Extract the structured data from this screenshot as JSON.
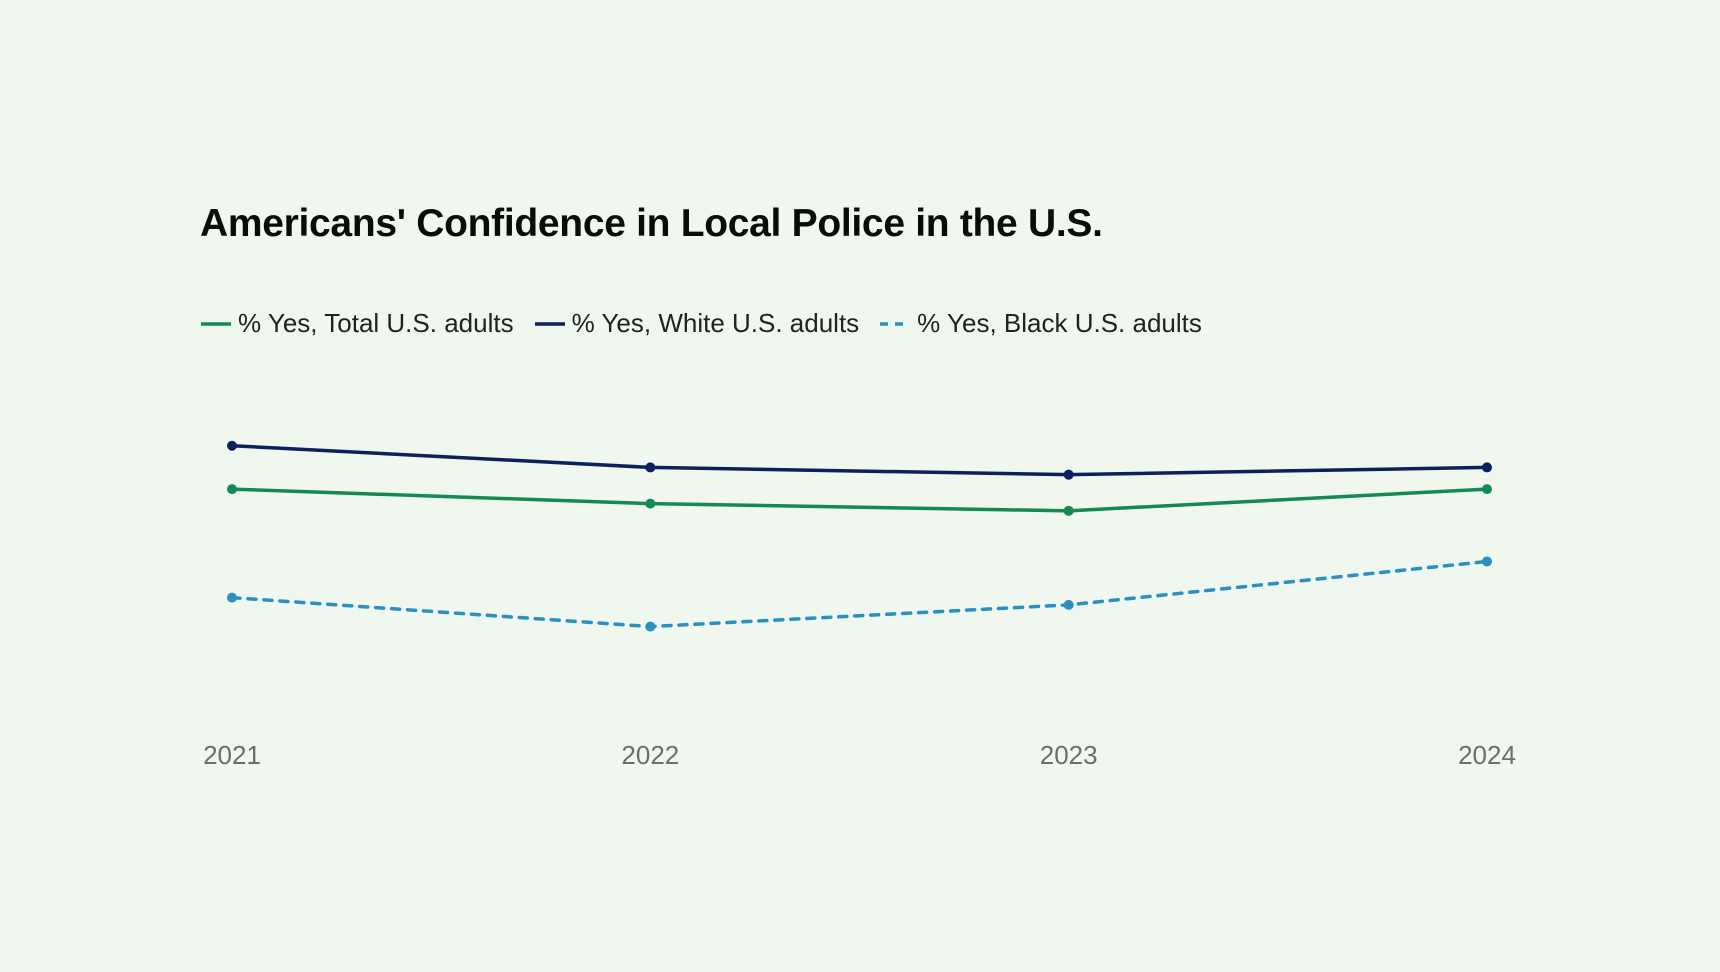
{
  "chart_data": {
    "type": "line",
    "title": "Americans' Confidence in Local Police in the U.S.",
    "xlabel": "",
    "ylabel": "",
    "categories": [
      "2021",
      "2022",
      "2023",
      "2024"
    ],
    "ylim": [
      40,
      100
    ],
    "grid": false,
    "legend_position": "top-left",
    "series": [
      {
        "name": "% Yes, Total U.S. adults",
        "values": [
          78,
          76,
          75,
          78
        ],
        "color": "#138a52",
        "dashed": false
      },
      {
        "name": "% Yes, White U.S. adults",
        "values": [
          84,
          81,
          80,
          81
        ],
        "color": "#0c1f5e",
        "dashed": false
      },
      {
        "name": "% Yes, Black U.S. adults",
        "values": [
          63,
          59,
          62,
          68
        ],
        "color": "#2b8fc0",
        "dashed": true
      }
    ]
  }
}
